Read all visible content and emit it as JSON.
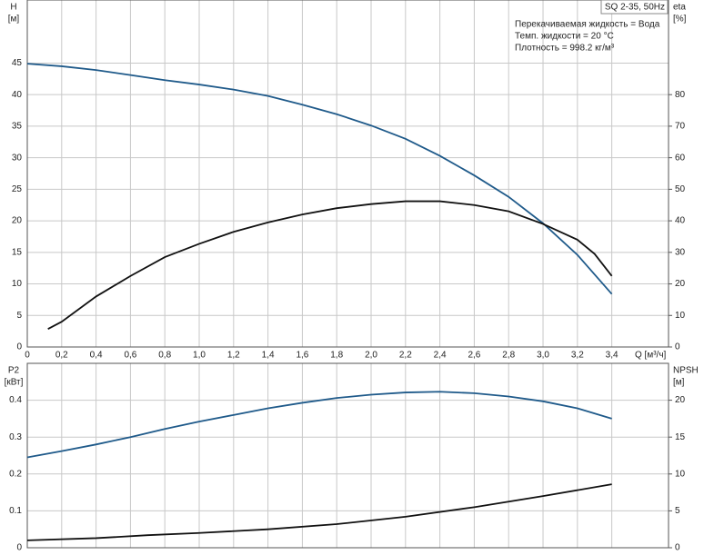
{
  "chart_data": [
    {
      "type": "line",
      "title": "SQ 2-35, 50Hz",
      "annotations": [
        "Перекачиваемая жидкость = Вода",
        "Темп. жидкости = 20 °C",
        "Плотность = 998.2 кг/м³"
      ],
      "xlabel": "Q [м³/ч]",
      "ylabel": "H",
      "yunit": "[м]",
      "y2label": "eta",
      "y2unit": "[%]",
      "xlim": [
        0,
        3.73
      ],
      "xticks": [
        0,
        {
          "value": 0.2,
          "label": "0,2"
        },
        {
          "value": 0.4,
          "label": "0,4"
        },
        {
          "value": 0.6,
          "label": "0,6"
        },
        {
          "value": 0.8,
          "label": "0,8"
        },
        {
          "value": 1.0,
          "label": "1,0"
        },
        {
          "value": 1.2,
          "label": "1,2"
        },
        {
          "value": 1.4,
          "label": "1,4"
        },
        {
          "value": 1.6,
          "label": "1,6"
        },
        {
          "value": 1.8,
          "label": "1,8"
        },
        {
          "value": 2.0,
          "label": "2,0"
        },
        {
          "value": 2.2,
          "label": "2,2"
        },
        {
          "value": 2.4,
          "label": "2,4"
        },
        {
          "value": 2.6,
          "label": "2,6"
        },
        {
          "value": 2.8,
          "label": "2,8"
        },
        {
          "value": 3.0,
          "label": "3,0"
        },
        {
          "value": 3.2,
          "label": "3,2"
        },
        {
          "value": 3.4,
          "label": "3,4"
        }
      ],
      "ylim": [
        0,
        55
      ],
      "yticks": [
        0,
        5,
        10,
        15,
        20,
        25,
        30,
        35,
        40,
        45
      ],
      "y2lim": [
        0,
        110
      ],
      "y2ticks": [
        0,
        10,
        20,
        30,
        40,
        50,
        60,
        70,
        80
      ],
      "grid": true,
      "series": [
        {
          "color": "#1f5a8a",
          "x": [
            0,
            0.2,
            0.4,
            0.6,
            0.8,
            1.0,
            1.2,
            1.4,
            1.6,
            1.8,
            2.0,
            2.2,
            2.4,
            2.6,
            2.8,
            3.0,
            3.2,
            3.4
          ],
          "values": [
            44.9,
            44.5,
            43.9,
            43.1,
            42.3,
            41.6,
            40.8,
            39.8,
            38.4,
            36.9,
            35.1,
            33.0,
            30.3,
            27.2,
            23.8,
            19.6,
            14.6,
            8.4
          ]
        },
        {
          "color": "#111111",
          "axis": "y2",
          "x": [
            0.12,
            0.2,
            0.4,
            0.6,
            0.8,
            1.0,
            1.2,
            1.4,
            1.6,
            1.8,
            2.0,
            2.2,
            2.4,
            2.6,
            2.8,
            3.0,
            3.2,
            3.3,
            3.4
          ],
          "values": [
            5.7,
            8,
            16,
            22.5,
            28.5,
            32.7,
            36.5,
            39.5,
            42,
            44,
            45.3,
            46.2,
            46.2,
            45,
            43,
            39,
            34,
            29.5,
            22.5
          ]
        }
      ]
    },
    {
      "type": "line",
      "ylabel": "P2",
      "yunit": "[кВт]",
      "y2label": "NPSH",
      "y2unit": "[м]",
      "xlim": [
        0,
        3.73
      ],
      "ylim": [
        0,
        0.5
      ],
      "yticks": [
        0,
        0.1,
        0.2,
        0.3,
        0.4
      ],
      "y2lim": [
        0,
        25
      ],
      "y2ticks": [
        0,
        5,
        10,
        15,
        20
      ],
      "grid": true,
      "series": [
        {
          "color": "#1f5a8a",
          "x": [
            0,
            0.2,
            0.4,
            0.6,
            0.8,
            1.0,
            1.2,
            1.4,
            1.6,
            1.8,
            2.0,
            2.2,
            2.4,
            2.6,
            2.8,
            3.0,
            3.2,
            3.4
          ],
          "values": [
            0.245,
            0.262,
            0.28,
            0.3,
            0.322,
            0.342,
            0.36,
            0.378,
            0.393,
            0.406,
            0.415,
            0.421,
            0.423,
            0.419,
            0.41,
            0.397,
            0.378,
            0.35
          ]
        },
        {
          "color": "#111111",
          "axis": "y2",
          "x": [
            0,
            0.4,
            0.7,
            1.0,
            1.4,
            1.8,
            2.2,
            2.6,
            3.0,
            3.4
          ],
          "values": [
            1.0,
            1.3,
            1.7,
            2.0,
            2.5,
            3.2,
            4.2,
            5.5,
            7.0,
            8.6
          ]
        }
      ]
    }
  ]
}
